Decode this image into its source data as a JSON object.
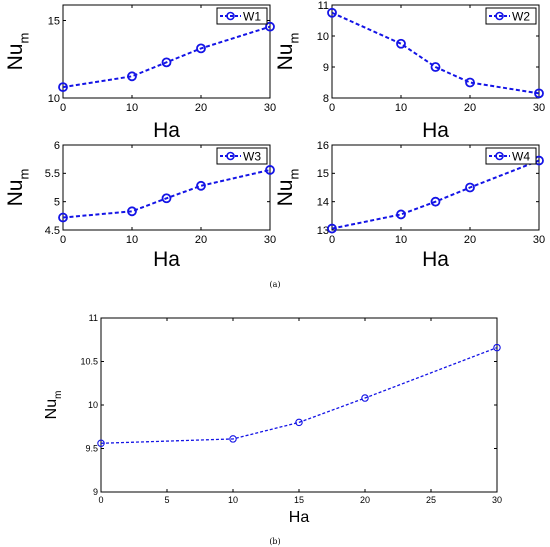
{
  "captions": {
    "a": "(a)",
    "b": "(b)"
  },
  "colors": {
    "series": "#1414e6",
    "axis": "#000000"
  },
  "chart_data": [
    {
      "type": "line",
      "xlabel": "Ha",
      "ylabel": "Nu",
      "ylabel_sub": "m",
      "x": [
        0,
        10,
        15,
        20,
        30
      ],
      "xticks": [
        "0",
        "10",
        "20",
        "30"
      ],
      "yticks": [
        "10",
        "15"
      ],
      "xlim": [
        0,
        30
      ],
      "ylim": [
        10,
        16
      ],
      "legend": "top-right",
      "series": [
        {
          "name": "W1",
          "values": [
            10.7,
            11.4,
            12.3,
            13.2,
            14.6
          ]
        }
      ]
    },
    {
      "type": "line",
      "xlabel": "Ha",
      "ylabel": "Nu",
      "ylabel_sub": "m",
      "x": [
        0,
        10,
        15,
        20,
        30
      ],
      "xticks": [
        "0",
        "10",
        "20",
        "30"
      ],
      "yticks": [
        "8",
        "9",
        "10",
        "11"
      ],
      "xlim": [
        0,
        30
      ],
      "ylim": [
        8,
        11
      ],
      "legend": "top-right",
      "series": [
        {
          "name": "W2",
          "values": [
            10.75,
            9.75,
            9.0,
            8.5,
            8.15
          ]
        }
      ]
    },
    {
      "type": "line",
      "xlabel": "Ha",
      "ylabel": "Nu",
      "ylabel_sub": "m",
      "x": [
        0,
        10,
        15,
        20,
        30
      ],
      "xticks": [
        "0",
        "10",
        "20",
        "30"
      ],
      "yticks": [
        "4.5",
        "5",
        "5.5",
        "6"
      ],
      "xlim": [
        0,
        30
      ],
      "ylim": [
        4.5,
        6
      ],
      "legend": "top-right",
      "series": [
        {
          "name": "W3",
          "values": [
            4.72,
            4.83,
            5.06,
            5.28,
            5.56
          ]
        }
      ]
    },
    {
      "type": "line",
      "xlabel": "Ha",
      "ylabel": "Nu",
      "ylabel_sub": "m",
      "x": [
        0,
        10,
        15,
        20,
        30
      ],
      "xticks": [
        "0",
        "10",
        "20",
        "30"
      ],
      "yticks": [
        "13",
        "14",
        "15",
        "16"
      ],
      "xlim": [
        0,
        30
      ],
      "ylim": [
        13,
        16
      ],
      "legend": "top-right",
      "series": [
        {
          "name": "W4",
          "values": [
            13.05,
            13.55,
            14.0,
            14.5,
            15.45
          ]
        }
      ]
    },
    {
      "type": "line",
      "xlabel": "Ha",
      "ylabel": "Nu",
      "ylabel_sub": "m",
      "x": [
        0,
        10,
        15,
        20,
        30
      ],
      "xticks": [
        "0",
        "5",
        "10",
        "15",
        "20",
        "25",
        "30"
      ],
      "yticks": [
        "9",
        "9.5",
        "10",
        "10.5",
        "11"
      ],
      "xlim": [
        0,
        30
      ],
      "ylim": [
        9,
        11
      ],
      "series": [
        {
          "values": [
            9.56,
            9.61,
            9.8,
            10.08,
            10.66
          ]
        }
      ]
    }
  ]
}
